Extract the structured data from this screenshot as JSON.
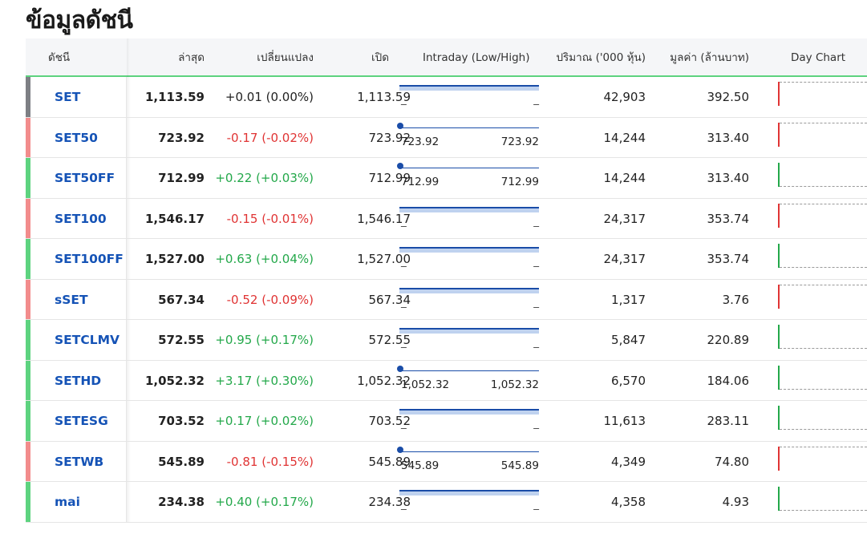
{
  "page_title": "ข้อมูลดัชนี",
  "headers": {
    "index": "ดัชนี",
    "last": "ล่าสุด",
    "change": "เปลี่ยนแปลง",
    "open": "เปิด",
    "intraday": "Intraday (Low/High)",
    "volume": "ปริมาณ ('000 หุ้น)",
    "value": "มูลค่า (ล้านบาท)",
    "daychart": "Day Chart"
  },
  "colors": {
    "up": "#23a84a",
    "down": "#e03434",
    "flat": "#888888",
    "link": "#1553b6",
    "header_underline": "#5dd37f"
  },
  "rows": [
    {
      "symbol": "SET",
      "last": "1,113.59",
      "change": "+0.01 (0.00%)",
      "dir": "flat",
      "open": "1,113.59",
      "low": "_",
      "high": "_",
      "volume": "42,903",
      "value": "392.50"
    },
    {
      "symbol": "SET50",
      "last": "723.92",
      "change": "-0.17 (-0.02%)",
      "dir": "down",
      "open": "723.92",
      "low": "723.92",
      "high": "723.92",
      "volume": "14,244",
      "value": "313.40"
    },
    {
      "symbol": "SET50FF",
      "last": "712.99",
      "change": "+0.22 (+0.03%)",
      "dir": "up",
      "open": "712.99",
      "low": "712.99",
      "high": "712.99",
      "volume": "14,244",
      "value": "313.40"
    },
    {
      "symbol": "SET100",
      "last": "1,546.17",
      "change": "-0.15 (-0.01%)",
      "dir": "down",
      "open": "1,546.17",
      "low": "_",
      "high": "_",
      "volume": "24,317",
      "value": "353.74"
    },
    {
      "symbol": "SET100FF",
      "last": "1,527.00",
      "change": "+0.63 (+0.04%)",
      "dir": "up",
      "open": "1,527.00",
      "low": "_",
      "high": "_",
      "volume": "24,317",
      "value": "353.74"
    },
    {
      "symbol": "sSET",
      "last": "567.34",
      "change": "-0.52 (-0.09%)",
      "dir": "down",
      "open": "567.34",
      "low": "_",
      "high": "_",
      "volume": "1,317",
      "value": "3.76"
    },
    {
      "symbol": "SETCLMV",
      "last": "572.55",
      "change": "+0.95 (+0.17%)",
      "dir": "up",
      "open": "572.55",
      "low": "_",
      "high": "_",
      "volume": "5,847",
      "value": "220.89"
    },
    {
      "symbol": "SETHD",
      "last": "1,052.32",
      "change": "+3.17 (+0.30%)",
      "dir": "up",
      "open": "1,052.32",
      "low": "1,052.32",
      "high": "1,052.32",
      "volume": "6,570",
      "value": "184.06"
    },
    {
      "symbol": "SETESG",
      "last": "703.52",
      "change": "+0.17 (+0.02%)",
      "dir": "up",
      "open": "703.52",
      "low": "_",
      "high": "_",
      "volume": "11,613",
      "value": "283.11"
    },
    {
      "symbol": "SETWB",
      "last": "545.89",
      "change": "-0.81 (-0.15%)",
      "dir": "down",
      "open": "545.89",
      "low": "545.89",
      "high": "545.89",
      "volume": "4,349",
      "value": "74.80"
    },
    {
      "symbol": "mai",
      "last": "234.38",
      "change": "+0.40 (+0.17%)",
      "dir": "up",
      "open": "234.38",
      "low": "_",
      "high": "_",
      "volume": "4,358",
      "value": "4.93"
    }
  ]
}
